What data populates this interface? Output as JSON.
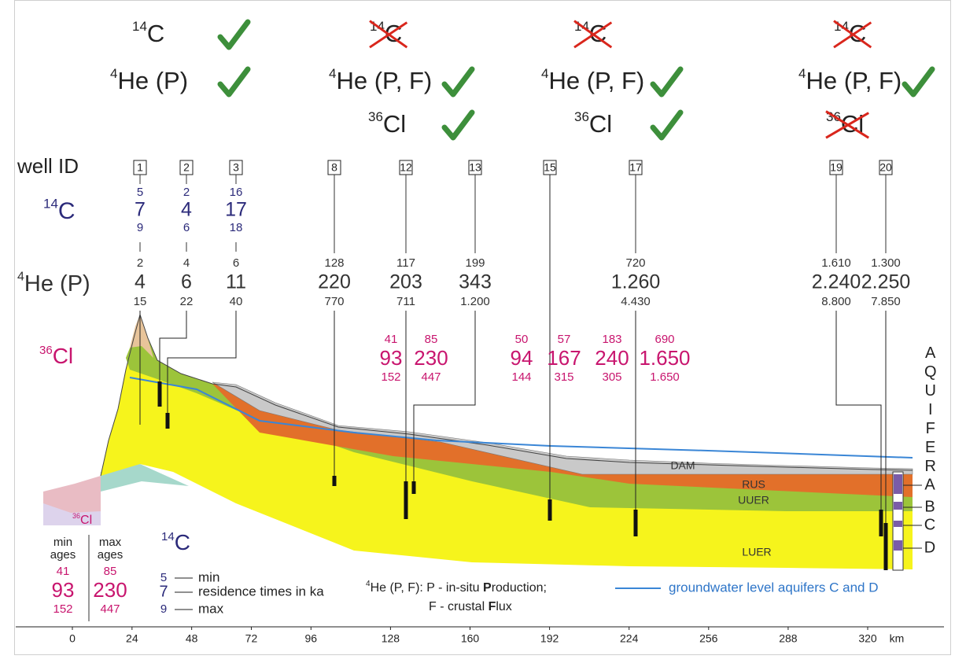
{
  "header": {
    "groups": [
      {
        "tracers": [
          {
            "sup": "14",
            "text": "C",
            "valid": true
          },
          {
            "sup": "4",
            "text": "He (P)",
            "valid": true
          }
        ]
      },
      {
        "tracers": [
          {
            "sup": "14",
            "text": "C",
            "valid": false
          },
          {
            "sup": "4",
            "text": "He (P, F)",
            "valid": true
          },
          {
            "sup": "36",
            "text": "Cl",
            "valid": true
          }
        ]
      },
      {
        "tracers": [
          {
            "sup": "14",
            "text": "C",
            "valid": false
          },
          {
            "sup": "4",
            "text": "He (P, F)",
            "valid": true
          },
          {
            "sup": "36",
            "text": "Cl",
            "valid": true
          }
        ]
      },
      {
        "tracers": [
          {
            "sup": "14",
            "text": "C",
            "valid": false
          },
          {
            "sup": "4",
            "text": "He (P, F)",
            "valid": true
          },
          {
            "sup": "36",
            "text": "Cl",
            "valid": false
          }
        ]
      }
    ]
  },
  "row_labels": {
    "well_id": "well ID",
    "c14": {
      "sup": "14",
      "text": "C"
    },
    "he4": {
      "sup": "4",
      "text": "He (P)"
    },
    "cl36": {
      "sup": "36",
      "text": "Cl"
    }
  },
  "wells": [
    {
      "id": "1",
      "c14": [
        "5",
        "7",
        "9"
      ],
      "he4": [
        "2",
        "4",
        "15"
      ]
    },
    {
      "id": "2",
      "c14": [
        "2",
        "4",
        "6"
      ],
      "he4": [
        "4",
        "6",
        "22"
      ]
    },
    {
      "id": "3",
      "c14": [
        "16",
        "17",
        "18"
      ],
      "he4": [
        "6",
        "11",
        "40"
      ]
    },
    {
      "id": "8",
      "he4": [
        "128",
        "220",
        "770"
      ]
    },
    {
      "id": "12",
      "he4": [
        "117",
        "203",
        "711"
      ]
    },
    {
      "id": "13",
      "he4": [
        "199",
        "343",
        "1.200"
      ]
    },
    {
      "id": "15"
    },
    {
      "id": "17",
      "he4": [
        "720",
        "1.260",
        "4.430"
      ]
    },
    {
      "id": "19",
      "he4": [
        "1.610",
        "2.240",
        "8.800"
      ]
    },
    {
      "id": "20",
      "he4": [
        "1.300",
        "2.250",
        "7.850"
      ]
    }
  ],
  "cl36_ages": [
    [
      "41",
      "93",
      "152"
    ],
    [
      "85",
      "230",
      "447"
    ],
    [
      "50",
      "94",
      "144"
    ],
    [
      "57",
      "167",
      "315"
    ],
    [
      "183",
      "240",
      "305"
    ],
    [
      "690",
      "1.650",
      "1.650"
    ]
  ],
  "aquifer": {
    "title": "AQUIFER",
    "units": [
      "A",
      "B",
      "C",
      "D"
    ]
  },
  "layers": [
    "DAM",
    "RUS",
    "UUER",
    "LUER"
  ],
  "legend": {
    "cl36": {
      "title": {
        "sup": "36",
        "text": "Cl"
      },
      "min_heading": [
        "min",
        "ages"
      ],
      "max_heading": [
        "max",
        "ages"
      ],
      "min": [
        "41",
        "93",
        "152"
      ],
      "max": [
        "85",
        "230",
        "447"
      ]
    },
    "c14": {
      "title": {
        "sup": "14",
        "text": "C"
      },
      "rows": [
        {
          "value": "5",
          "label": "min"
        },
        {
          "value": "7",
          "label": "residence times in ka"
        },
        {
          "value": "9",
          "label": "max"
        }
      ]
    },
    "he4_note": {
      "sup": "4",
      "line1": [
        "He (P, F): P - in-situ ",
        "P",
        "roduction;"
      ],
      "line2": [
        "F - crustal ",
        "F",
        "lux"
      ]
    },
    "groundwater": "groundwater level aquifers C and D"
  },
  "distance_axis": {
    "ticks": [
      0,
      24,
      48,
      72,
      96,
      128,
      160,
      192,
      224,
      256,
      288,
      320
    ],
    "unit": "km"
  }
}
